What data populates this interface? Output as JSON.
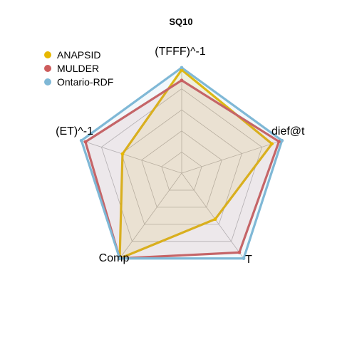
{
  "chart_data": {
    "type": "radar",
    "title": "SQ10",
    "axes": [
      "(TFFF)^-1",
      "dief@t",
      "T",
      "Comp",
      "(ET)^-1"
    ],
    "range": [
      0,
      1
    ],
    "grid_levels": 5,
    "legend_position": "top-left",
    "series": [
      {
        "name": "ANAPSID",
        "color": "#E7B800",
        "fill": "rgba(231,184,0,0.12)",
        "values": [
          0.98,
          0.9,
          0.54,
          1.0,
          0.59
        ]
      },
      {
        "name": "MULDER",
        "color": "#CD5C5C",
        "fill": "rgba(205,92,92,0.10)",
        "values": [
          0.88,
          0.97,
          0.93,
          1.0,
          0.96
        ]
      },
      {
        "name": "Ontario-RDF",
        "color": "#7FB8D6",
        "fill": "rgba(127,184,214,0.10)",
        "values": [
          1.0,
          1.0,
          1.0,
          1.0,
          1.0
        ]
      }
    ]
  }
}
